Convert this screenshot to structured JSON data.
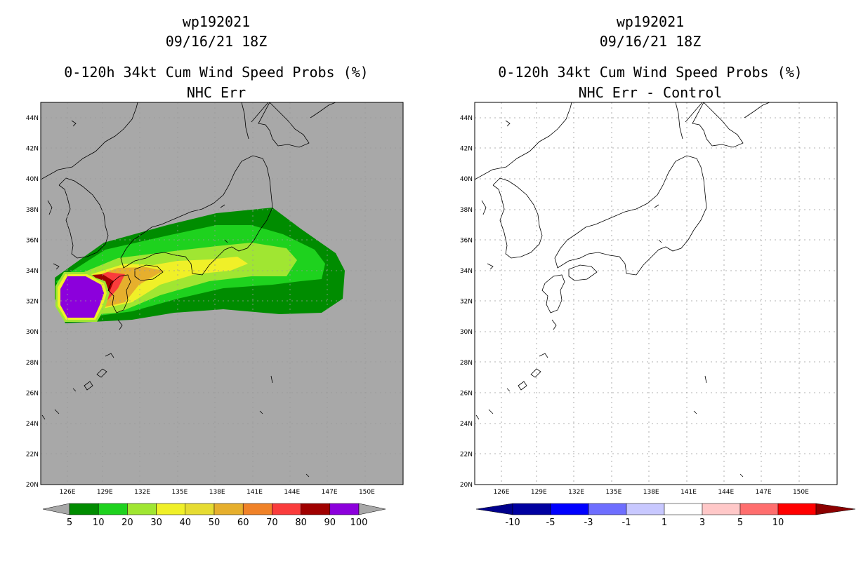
{
  "left_panel": {
    "title_line1": "wp192021",
    "title_line2": "09/16/21 18Z",
    "title_line3": "0-120h 34kt Cum Wind Speed Probs (%)",
    "title_line4": "NHC Err"
  },
  "right_panel": {
    "title_line1": "wp192021",
    "title_line2": "09/16/21 18Z",
    "title_line3": "0-120h 34kt Cum Wind Speed Probs (%)",
    "title_line4": "NHC Err - Control"
  },
  "axes": {
    "lat_labels": [
      "44N",
      "42N",
      "40N",
      "38N",
      "36N",
      "34N",
      "32N",
      "30N",
      "28N",
      "26N",
      "24N",
      "22N",
      "20N"
    ],
    "lon_labels": [
      "126E",
      "129E",
      "132E",
      "135E",
      "138E",
      "141E",
      "144E",
      "147E",
      "150E"
    ]
  },
  "colorbar_left": {
    "labels": [
      "5",
      "10",
      "20",
      "30",
      "40",
      "50",
      "60",
      "70",
      "80",
      "90",
      "100"
    ],
    "colors": [
      "#008c00",
      "#1ed21e",
      "#a0e632",
      "#f0f028",
      "#e6dc32",
      "#e6af2d",
      "#f08228",
      "#fa3c3c",
      "#a00000",
      "#8c00dc"
    ]
  },
  "colorbar_right": {
    "labels": [
      "-10",
      "-5",
      "-3",
      "-1",
      "1",
      "3",
      "5",
      "10"
    ],
    "colors": [
      "#0000a0",
      "#0000ff",
      "#6e6eff",
      "#c8c8ff",
      "#ffffff",
      "#ffc8c8",
      "#ff6e6e",
      "#ff0000"
    ]
  }
}
